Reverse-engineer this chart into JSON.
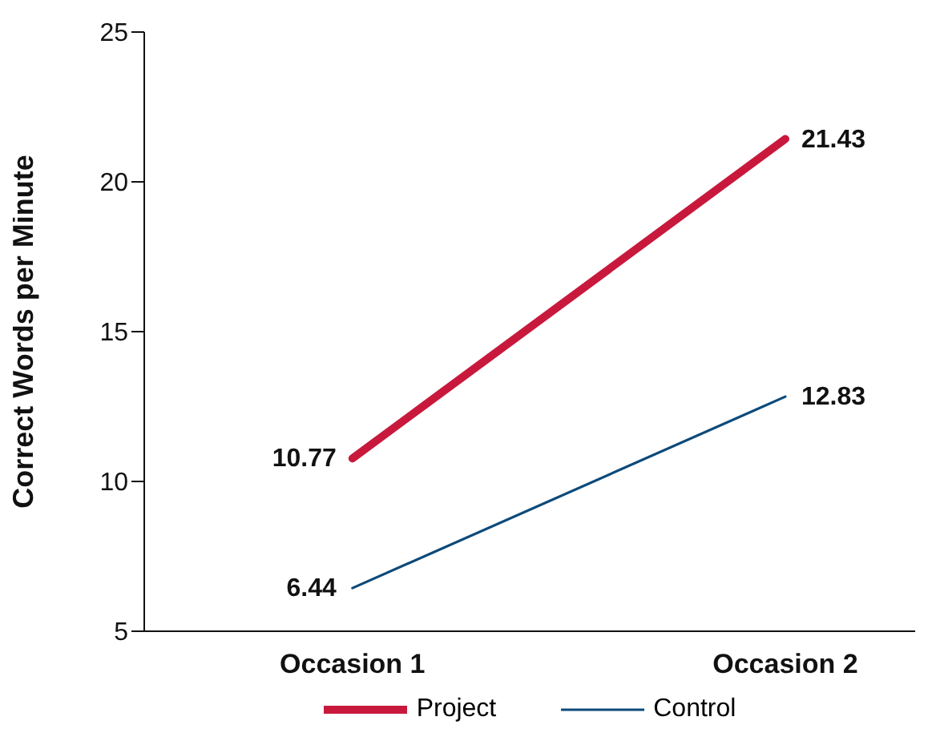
{
  "chart_data": {
    "type": "line",
    "ylabel": "Correct Words per Minute",
    "categories": [
      "Occasion 1",
      "Occasion 2"
    ],
    "series": [
      {
        "name": "Project",
        "color": "#c8193c",
        "values": [
          10.77,
          21.43
        ]
      },
      {
        "name": "Control",
        "color": "#0d4a7a",
        "values": [
          6.44,
          12.83
        ]
      }
    ],
    "ylim": [
      5,
      25
    ],
    "yticks": [
      5,
      10,
      15,
      20,
      25
    ],
    "grid": false,
    "legend": "bottom",
    "marker": "none",
    "data_labels": true
  }
}
